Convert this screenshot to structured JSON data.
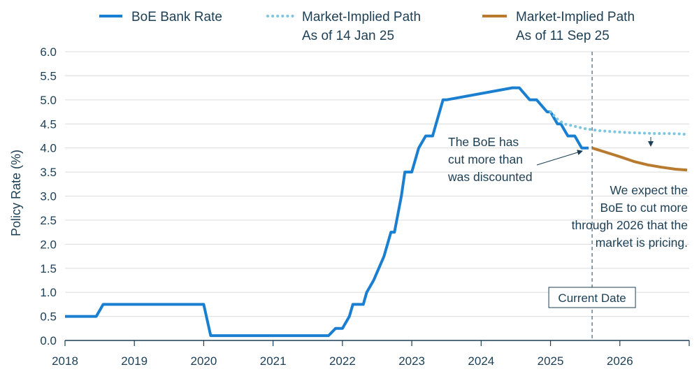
{
  "chart_data": {
    "type": "line",
    "ylabel": "Policy Rate (%)",
    "ylim": [
      0,
      6
    ],
    "y_ticks": [
      "0.0",
      "0.5",
      "1.0",
      "1.5",
      "2.0",
      "2.5",
      "3.0",
      "3.5",
      "4.0",
      "4.5",
      "5.0",
      "5.5",
      "6.0"
    ],
    "x_ticks": [
      "2018",
      "2019",
      "2020",
      "2021",
      "2022",
      "2023",
      "2024",
      "2025",
      "2026"
    ],
    "xlim": [
      2018,
      2027
    ],
    "grid": "horizontal",
    "legend_position": "top",
    "colors": {
      "bank_rate": "#1a7fd0",
      "jan25": "#7cc7df",
      "sep25": "#b87a2e",
      "text": "#1c3f55",
      "grid": "#dcdcdc"
    },
    "series": [
      {
        "key": "bank_rate",
        "name": "BoE Bank Rate",
        "style": "solid",
        "x": [
          2018.0,
          2018.45,
          2018.55,
          2020.0,
          2020.1,
          2021.8,
          2021.9,
          2022.0,
          2022.1,
          2022.15,
          2022.3,
          2022.35,
          2022.45,
          2022.6,
          2022.7,
          2022.75,
          2022.85,
          2022.9,
          2023.0,
          2023.1,
          2023.2,
          2023.3,
          2023.35,
          2023.45,
          2023.5,
          2024.45,
          2024.55,
          2024.7,
          2024.8,
          2024.95,
          2025.0,
          2025.1,
          2025.15,
          2025.25,
          2025.35,
          2025.45,
          2025.55
        ],
        "y": [
          0.5,
          0.5,
          0.75,
          0.75,
          0.1,
          0.1,
          0.25,
          0.25,
          0.5,
          0.75,
          0.75,
          1.0,
          1.25,
          1.75,
          2.25,
          2.25,
          3.0,
          3.5,
          3.5,
          4.0,
          4.25,
          4.25,
          4.5,
          5.0,
          5.0,
          5.25,
          5.25,
          5.0,
          5.0,
          4.75,
          4.75,
          4.5,
          4.5,
          4.25,
          4.25,
          4.0,
          4.0
        ]
      },
      {
        "key": "jan25",
        "name": "Market-Implied Path",
        "name_line2": "As of 14 Jan 25",
        "style": "dotted",
        "x": [
          2025.0,
          2025.1,
          2025.2,
          2025.35,
          2025.5,
          2025.7,
          2025.9,
          2026.1,
          2026.3,
          2026.5,
          2026.7,
          2026.9,
          2026.97
        ],
        "y": [
          4.75,
          4.6,
          4.5,
          4.45,
          4.4,
          4.36,
          4.34,
          4.32,
          4.31,
          4.3,
          4.3,
          4.29,
          4.28
        ]
      },
      {
        "key": "sep25",
        "name": "Market-Implied Path",
        "name_line2": "As of 11 Sep 25",
        "style": "solid",
        "x": [
          2025.6,
          2025.8,
          2026.0,
          2026.2,
          2026.4,
          2026.6,
          2026.8,
          2026.97
        ],
        "y": [
          4.0,
          3.91,
          3.82,
          3.72,
          3.65,
          3.6,
          3.56,
          3.54
        ]
      }
    ],
    "current_date": {
      "label": "Current Date",
      "x": 2025.6
    },
    "annotations": [
      {
        "key": "cut_more",
        "lines": [
          "The BoE has",
          "cut more than",
          "was discounted"
        ]
      },
      {
        "key": "expect",
        "lines": [
          "We expect the",
          "BoE to cut more",
          "through 2026 that the",
          "market is pricing."
        ]
      }
    ]
  }
}
